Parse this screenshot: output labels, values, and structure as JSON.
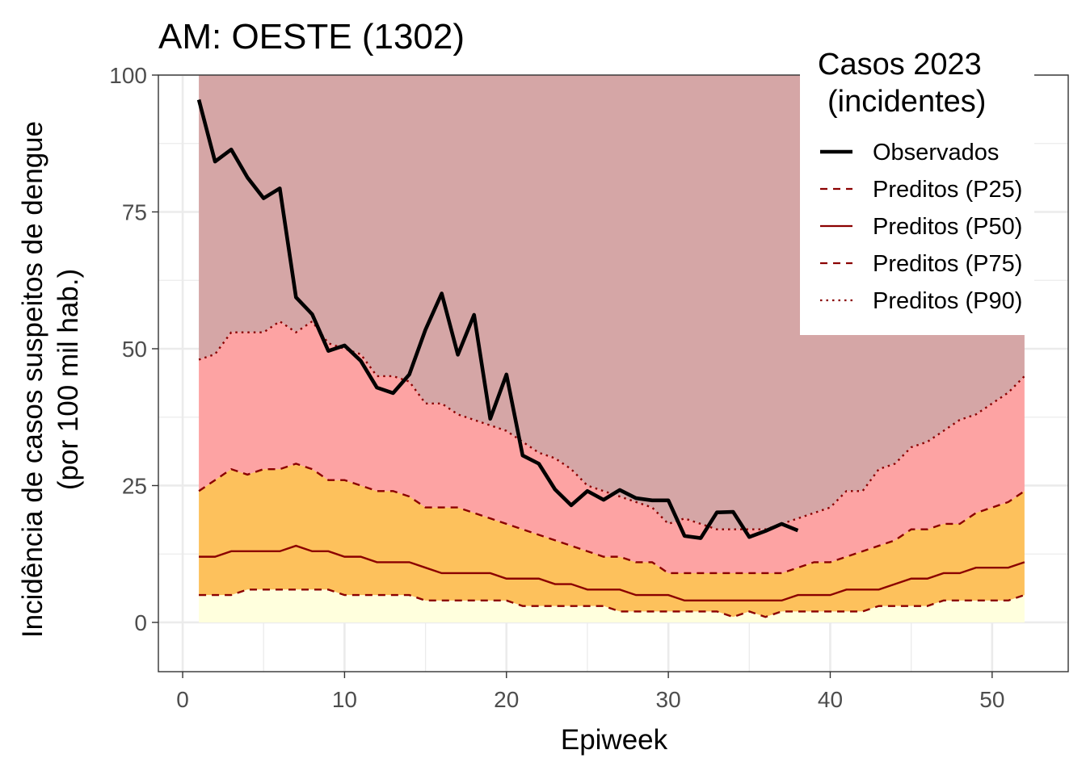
{
  "chart_data": {
    "type": "area",
    "title": "AM: OESTE (1302)",
    "xlabel": "Epiweek",
    "ylabel_line1": "Incidência de casos suspeitos de dengue",
    "ylabel_line2": "(por 100 mil hab.)",
    "xlim": [
      -1.5,
      54.7
    ],
    "ylim": [
      -9,
      100
    ],
    "x_ticks": [
      0,
      10,
      20,
      30,
      40,
      50
    ],
    "y_ticks": [
      0,
      25,
      50,
      75,
      100
    ],
    "grid": true,
    "legend_position": "top-right",
    "legend": {
      "title_line1": "Casos 2023",
      "title_line2": "(incidentes)",
      "entries": [
        {
          "label": "Observados",
          "color": "#000000",
          "style": "solid-thick"
        },
        {
          "label": "Preditos (P25)",
          "color": "#8b0000",
          "style": "dashed"
        },
        {
          "label": "Preditos (P50)",
          "color": "#8b0000",
          "style": "solid"
        },
        {
          "label": "Preditos (P75)",
          "color": "#8b0000",
          "style": "dashed"
        },
        {
          "label": "Preditos (P90)",
          "color": "#8b0000",
          "style": "dotted"
        }
      ]
    },
    "bands": {
      "colors": {
        "below_p25": "#ffffdd",
        "p25_p75": "#fdc15c",
        "p75_p90": "#fda3a3",
        "above_p90": "#d5a6a6"
      },
      "top": 100
    },
    "x": [
      1,
      2,
      3,
      4,
      5,
      6,
      7,
      8,
      9,
      10,
      11,
      12,
      13,
      14,
      15,
      16,
      17,
      18,
      19,
      20,
      21,
      22,
      23,
      24,
      25,
      26,
      27,
      28,
      29,
      30,
      31,
      32,
      33,
      34,
      35,
      36,
      37,
      38,
      39,
      40,
      41,
      42,
      43,
      44,
      45,
      46,
      47,
      48,
      49,
      50,
      51,
      52
    ],
    "series": [
      {
        "name": "Preditos (P25)",
        "values": [
          5,
          5,
          5,
          6,
          6,
          6,
          6,
          6,
          6,
          5,
          5,
          5,
          5,
          5,
          4,
          4,
          4,
          4,
          4,
          4,
          3,
          3,
          3,
          3,
          3,
          3,
          2,
          2,
          2,
          2,
          2,
          2,
          2,
          1,
          2,
          1,
          2,
          2,
          2,
          2,
          2,
          2,
          3,
          3,
          3,
          3,
          4,
          4,
          4,
          4,
          4,
          5
        ]
      },
      {
        "name": "Preditos (P50)",
        "values": [
          12,
          12,
          13,
          13,
          13,
          13,
          14,
          13,
          13,
          12,
          12,
          11,
          11,
          11,
          10,
          9,
          9,
          9,
          9,
          8,
          8,
          8,
          7,
          7,
          6,
          6,
          6,
          5,
          5,
          5,
          4,
          4,
          4,
          4,
          4,
          4,
          4,
          5,
          5,
          5,
          6,
          6,
          6,
          7,
          8,
          8,
          9,
          9,
          10,
          10,
          10,
          11
        ]
      },
      {
        "name": "Preditos (P75)",
        "values": [
          24,
          26,
          28,
          27,
          28,
          28,
          29,
          28,
          26,
          26,
          25,
          24,
          24,
          23,
          21,
          21,
          21,
          20,
          19,
          18,
          17,
          16,
          15,
          14,
          13,
          12,
          12,
          11,
          11,
          9,
          9,
          9,
          9,
          9,
          9,
          9,
          9,
          10,
          11,
          11,
          12,
          13,
          14,
          15,
          17,
          17,
          18,
          18,
          20,
          21,
          22,
          24
        ]
      },
      {
        "name": "Preditos (P90)",
        "values": [
          48,
          49,
          53,
          53,
          53,
          55,
          53,
          55,
          51,
          50,
          49,
          45,
          45,
          44,
          40,
          40,
          38,
          37,
          36,
          35,
          33,
          31,
          30,
          28,
          25,
          24,
          23,
          22,
          21,
          18,
          19,
          18,
          17,
          17,
          17,
          17,
          18,
          19,
          20,
          21,
          24,
          24,
          28,
          29,
          32,
          33,
          35,
          37,
          38,
          40,
          42,
          45
        ]
      },
      {
        "name": "Observados",
        "x": [
          1,
          2,
          3,
          4,
          5,
          6,
          7,
          8,
          9,
          10,
          11,
          12,
          13,
          14,
          15,
          16,
          17,
          18,
          19,
          20,
          21,
          22,
          23,
          24,
          25,
          26,
          27,
          28,
          29,
          30,
          31,
          32,
          33,
          34,
          35,
          36,
          37,
          38
        ],
        "values": [
          95.5,
          84.2,
          86.4,
          81.3,
          77.5,
          79.3,
          59.4,
          56.3,
          49.6,
          50.6,
          47.8,
          42.9,
          41.9,
          45.3,
          53.5,
          60.1,
          48.9,
          56.2,
          37.2,
          45.3,
          30.5,
          29.0,
          24.3,
          21.4,
          24.0,
          22.4,
          24.2,
          22.7,
          22.3,
          22.3,
          15.8,
          15.4,
          20.1,
          20.2,
          15.6,
          16.7,
          18.0,
          16.8
        ]
      }
    ]
  }
}
